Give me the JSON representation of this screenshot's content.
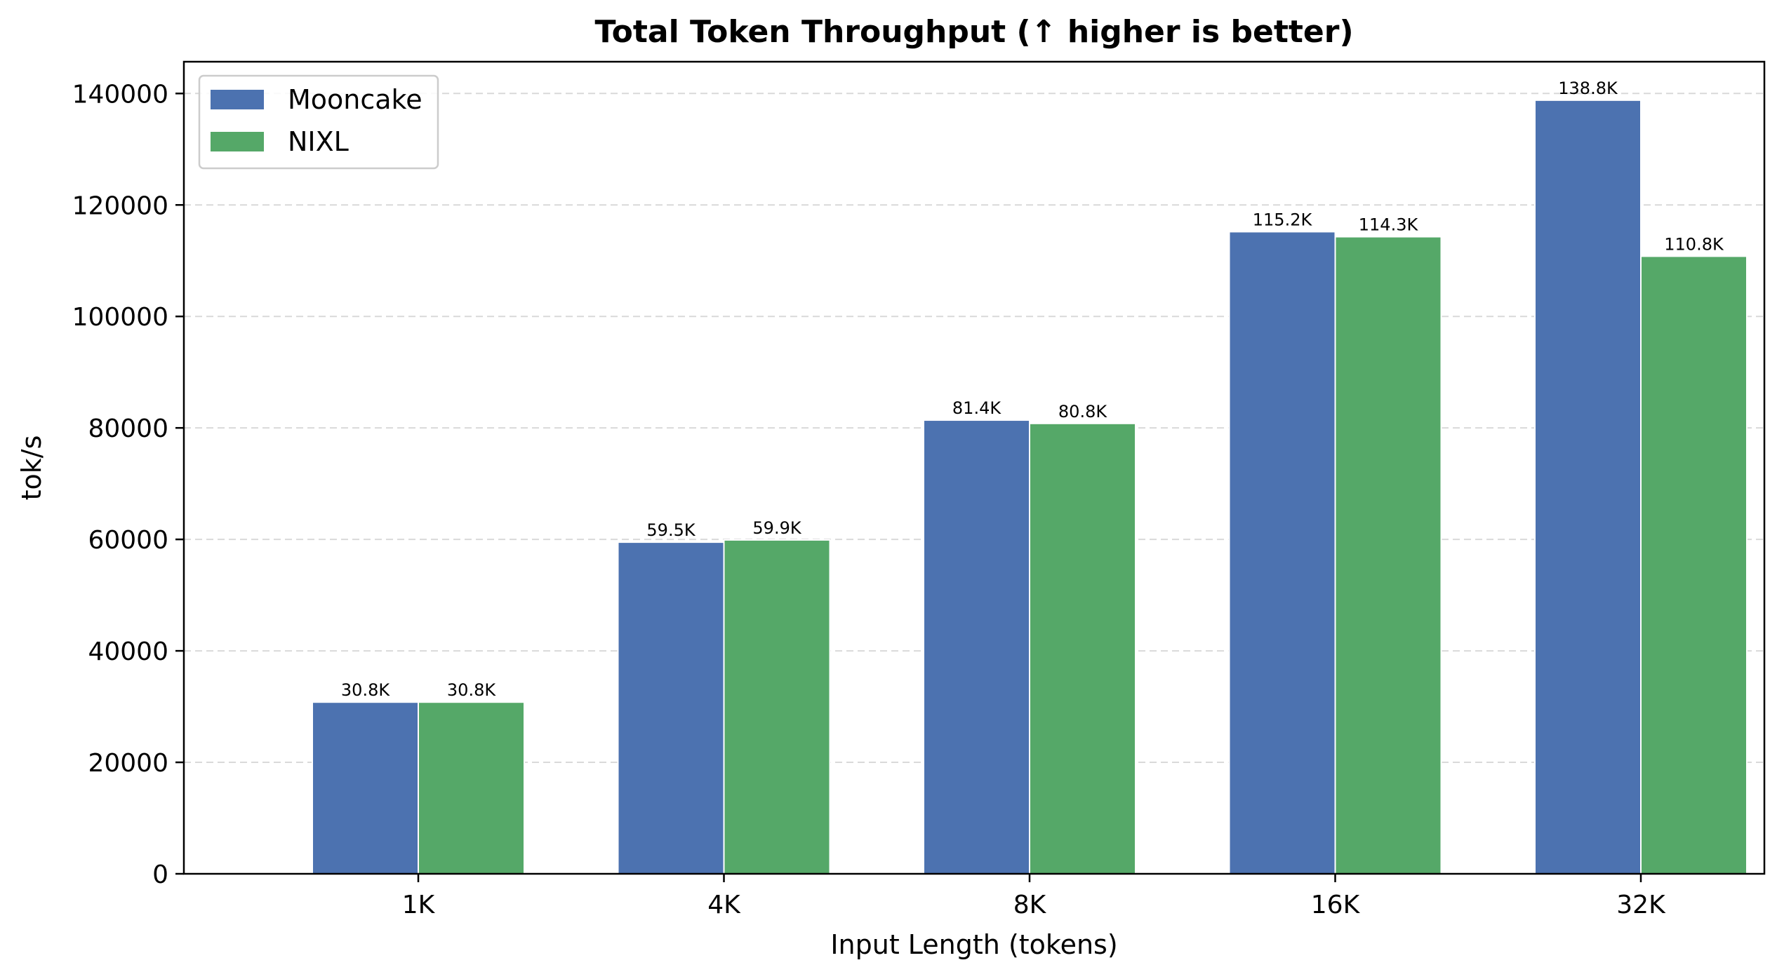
{
  "chart_data": {
    "type": "bar",
    "title": "Total Token Throughput  (↑ higher is better)",
    "xlabel": "Input Length (tokens)",
    "ylabel": "tok/s",
    "categories": [
      "1K",
      "4K",
      "8K",
      "16K",
      "32K"
    ],
    "series": [
      {
        "name": "Mooncake",
        "color": "#4c72b0",
        "values": [
          30800,
          59500,
          81400,
          115200,
          138800
        ],
        "labels": [
          "30.8K",
          "59.5K",
          "81.4K",
          "115.2K",
          "138.8K"
        ]
      },
      {
        "name": "NIXL",
        "color": "#55a868",
        "values": [
          30800,
          59900,
          80800,
          114300,
          110800
        ],
        "labels": [
          "30.8K",
          "59.9K",
          "80.8K",
          "114.3K",
          "110.8K"
        ]
      }
    ],
    "ylim": [
      0,
      145700
    ],
    "yticks": [
      0,
      20000,
      40000,
      60000,
      80000,
      100000,
      120000,
      140000
    ],
    "ytick_labels": [
      "0",
      "20000",
      "40000",
      "60000",
      "80000",
      "100000",
      "120000",
      "140000"
    ],
    "grid": "y-dashed",
    "legend_position": "top-left"
  }
}
